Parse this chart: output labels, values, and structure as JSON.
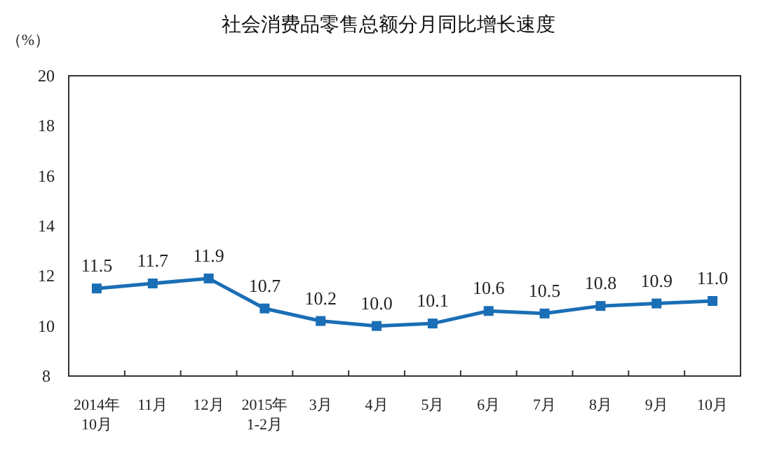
{
  "chart_data": {
    "type": "line",
    "title": "社会消费品零售总额分月同比增长速度",
    "ylabel": "（%）",
    "categories": [
      "2014年\n10月",
      "11月",
      "12月",
      "2015年\n1-2月",
      "3月",
      "4月",
      "5月",
      "6月",
      "7月",
      "8月",
      "9月",
      "10月"
    ],
    "series": [
      {
        "color": "#1a6eb5",
        "values": [
          11.5,
          11.7,
          11.9,
          10.7,
          10.2,
          10.0,
          10.1,
          10.6,
          10.5,
          10.8,
          10.9,
          11.0
        ]
      }
    ],
    "value_labels": [
      "11.5",
      "11.7",
      "11.9",
      "10.7",
      "10.2",
      "10.0",
      "10.1",
      "10.6",
      "10.5",
      "10.8",
      "10.9",
      "11.0"
    ],
    "ylim": [
      8,
      20
    ],
    "yticks": [
      8,
      10,
      12,
      14,
      16,
      18,
      20
    ],
    "grid": false,
    "marker": "square",
    "line_style": "solid"
  }
}
